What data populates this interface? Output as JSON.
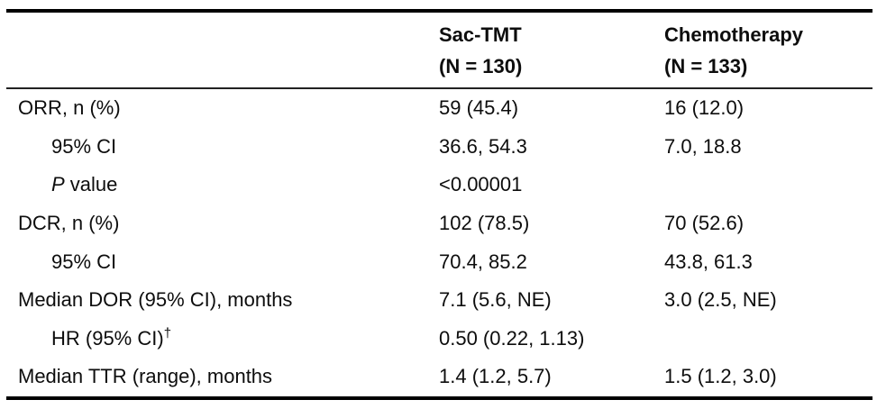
{
  "colors": {
    "background": "#ffffff",
    "text": "#0d0d0d",
    "rule": "#000000"
  },
  "table": {
    "header": {
      "col2": {
        "name": "Sac-TMT",
        "n": "(N = 130)"
      },
      "col3": {
        "name": "Chemotherapy",
        "n": "(N = 133)"
      }
    },
    "rows": [
      {
        "label": "ORR, n (%)",
        "sac": "59 (45.4)",
        "chemo": "16 (12.0)"
      },
      {
        "label": "95% CI",
        "sac": "36.6, 54.3",
        "chemo": "7.0, 18.8"
      },
      {
        "label_italic": "P",
        "label": " value",
        "sac": "<0.00001",
        "chemo": ""
      },
      {
        "label": "DCR, n (%)",
        "sac": "102 (78.5)",
        "chemo": "70 (52.6)"
      },
      {
        "label": "95% CI",
        "sac": "70.4, 85.2",
        "chemo": "43.8, 61.3"
      },
      {
        "label": "Median DOR (95% CI), months",
        "sac": "7.1 (5.6, NE)",
        "chemo": "3.0 (2.5, NE)"
      },
      {
        "label": "HR (95% CI)",
        "label_sup": "†",
        "sac": "0.50 (0.22, 1.13)",
        "chemo": ""
      },
      {
        "label": "Median TTR (range), months",
        "sac": "1.4 (1.2, 5.7)",
        "chemo": "1.5 (1.2, 3.0)"
      }
    ]
  }
}
